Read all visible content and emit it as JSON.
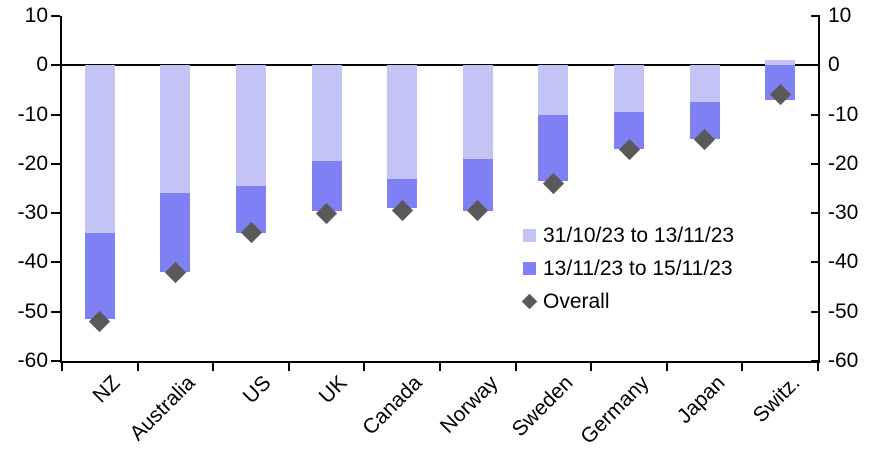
{
  "chart_data": {
    "type": "bar",
    "subtype": "stacked-bars-with-diamond-markers",
    "title": "",
    "xlabel": "",
    "ylabel": "",
    "categories": [
      "NZ",
      "Australia",
      "US",
      "UK",
      "Canada",
      "Norway",
      "Sweden",
      "Germany",
      "Japan",
      "Switz."
    ],
    "series": [
      {
        "name": "31/10/23 to 13/11/23",
        "color": "#c3c3f5",
        "values": [
          -34,
          -26,
          -24.5,
          -19.5,
          -23,
          -19,
          -10,
          -9.5,
          -7.5,
          1
        ]
      },
      {
        "name": "13/11/23 to 15/11/23",
        "color": "#8080f5",
        "values": [
          -17.5,
          -16,
          -9.5,
          -10,
          -6,
          -10.5,
          -13.5,
          -7.5,
          -7.5,
          -7
        ]
      }
    ],
    "markers": {
      "name": "Overall",
      "color": "#595959",
      "values": [
        -52,
        -42,
        -34,
        -30,
        -29.5,
        -29.5,
        -24,
        -17,
        -15,
        -6
      ]
    },
    "y_axis": {
      "min": -60,
      "max": 10,
      "tick_step": 10,
      "ticks": [
        10,
        0,
        -10,
        -20,
        -30,
        -40,
        -50,
        -60
      ],
      "tick_labels": [
        "10",
        "0",
        "-10",
        "-20",
        "-30",
        "-40",
        "-50",
        "-60"
      ],
      "sides": [
        "left",
        "right"
      ]
    },
    "zero_line": true,
    "grid": "off",
    "legend_position": "inside-right",
    "axis_color": "#000000",
    "background_color": "#ffffff"
  }
}
